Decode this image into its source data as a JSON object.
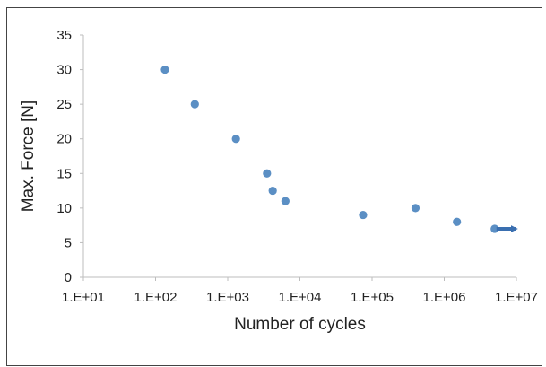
{
  "chart_data": {
    "type": "scatter",
    "xlabel": "Number of cycles",
    "ylabel": "Max. Force  [N]",
    "xscale": "log",
    "xlim": [
      10,
      10000000
    ],
    "ylim": [
      0,
      35
    ],
    "x_tick_values": [
      10,
      100,
      1000,
      10000,
      100000,
      1000000,
      10000000
    ],
    "x_tick_labels": [
      "1.E+01",
      "1.E+02",
      "1.E+03",
      "1.E+04",
      "1.E+05",
      "1.E+06",
      "1.E+07"
    ],
    "y_tick_values": [
      0,
      5,
      10,
      15,
      20,
      25,
      30,
      35
    ],
    "y_tick_labels": [
      "0",
      "5",
      "10",
      "15",
      "20",
      "25",
      "30",
      "35"
    ],
    "grid": false,
    "legend": "none",
    "marker_color": "#5b8fc4",
    "series": [
      {
        "points": [
          {
            "x": 135,
            "y": 30
          },
          {
            "x": 350,
            "y": 25
          },
          {
            "x": 1300,
            "y": 20
          },
          {
            "x": 3500,
            "y": 15
          },
          {
            "x": 4200,
            "y": 12.5
          },
          {
            "x": 6300,
            "y": 11
          },
          {
            "x": 75000,
            "y": 9
          },
          {
            "x": 400000,
            "y": 10
          },
          {
            "x": 1500000,
            "y": 8
          },
          {
            "x": 5000000,
            "y": 7
          }
        ]
      }
    ],
    "annotations": [
      {
        "type": "arrow",
        "description": "run-out arrow pointing right from last point",
        "x": 5000000,
        "y": 7
      }
    ]
  }
}
